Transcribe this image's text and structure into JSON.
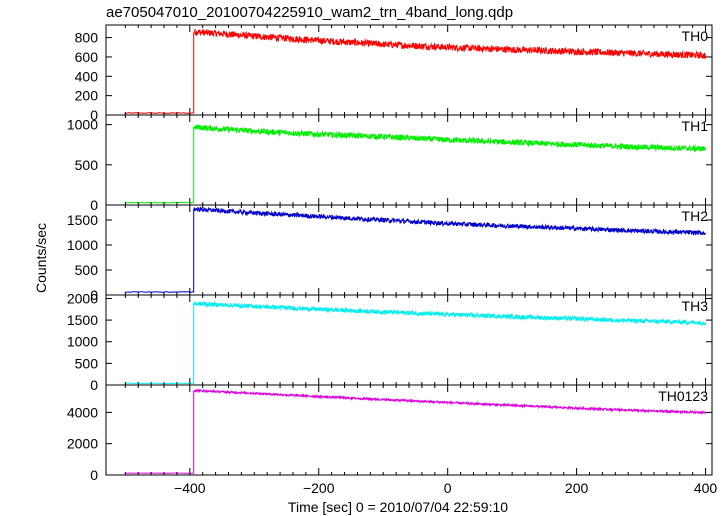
{
  "title": "ae705047010_20100704225910_wam2_trn_4band_long.qdp",
  "ylabel": "Counts/sec",
  "xlabel": "Time [sec] 0 = 2010/07/04 22:59:10",
  "chart_data": {
    "type": "line",
    "title": "ae705047010_20100704225910_wam2_trn_4band_long.qdp",
    "xlabel": "Time [sec] 0 = 2010/07/04 22:59:10",
    "ylabel": "Counts/sec",
    "xlim": [
      -530,
      410
    ],
    "x_ticks": [
      -400,
      -200,
      0,
      200,
      400
    ],
    "x_tick_labels": [
      "−400",
      "−200",
      "0",
      "200",
      "400"
    ],
    "trigger_time": -394,
    "x_end": 400,
    "grid": false,
    "panels": [
      {
        "name": "TH0",
        "color": "#ff0000",
        "ylim": [
          0,
          930
        ],
        "y_ticks": [
          0,
          200,
          400,
          600,
          800
        ],
        "background": 20,
        "points": [
          [
            -394,
            860
          ],
          [
            -300,
            815
          ],
          [
            -200,
            770
          ],
          [
            -100,
            730
          ],
          [
            0,
            700
          ],
          [
            100,
            675
          ],
          [
            200,
            655
          ],
          [
            300,
            635
          ],
          [
            400,
            615
          ]
        ],
        "noise": 70
      },
      {
        "name": "TH1",
        "color": "#00ee00",
        "ylim": [
          0,
          1120
        ],
        "y_ticks": [
          0,
          500,
          1000
        ],
        "background": 30,
        "points": [
          [
            -394,
            970
          ],
          [
            -300,
            920
          ],
          [
            -200,
            880
          ],
          [
            -100,
            850
          ],
          [
            0,
            810
          ],
          [
            100,
            780
          ],
          [
            200,
            750
          ],
          [
            300,
            720
          ],
          [
            400,
            700
          ]
        ],
        "noise": 70
      },
      {
        "name": "TH2",
        "color": "#0000cc",
        "ylim": [
          0,
          1800
        ],
        "y_ticks": [
          0,
          500,
          1000,
          1500
        ],
        "background": 60,
        "points": [
          [
            -394,
            1720
          ],
          [
            -300,
            1640
          ],
          [
            -200,
            1570
          ],
          [
            -100,
            1500
          ],
          [
            0,
            1430
          ],
          [
            100,
            1380
          ],
          [
            200,
            1330
          ],
          [
            300,
            1280
          ],
          [
            400,
            1240
          ]
        ],
        "noise": 90
      },
      {
        "name": "TH3",
        "color": "#00eeee",
        "ylim": [
          0,
          2080
        ],
        "y_ticks": [
          0,
          500,
          1000,
          1500,
          2000
        ],
        "background": 40,
        "points": [
          [
            -394,
            1880
          ],
          [
            -300,
            1820
          ],
          [
            -200,
            1750
          ],
          [
            -100,
            1690
          ],
          [
            0,
            1630
          ],
          [
            100,
            1580
          ],
          [
            200,
            1530
          ],
          [
            300,
            1480
          ],
          [
            400,
            1440
          ]
        ],
        "noise": 100
      },
      {
        "name": "TH0123",
        "color": "#dd00dd",
        "ylim": [
          0,
          5750
        ],
        "y_ticks": [
          0,
          2000,
          4000
        ],
        "background": 120,
        "points": [
          [
            -394,
            5400
          ],
          [
            -300,
            5220
          ],
          [
            -200,
            5010
          ],
          [
            -100,
            4820
          ],
          [
            0,
            4630
          ],
          [
            100,
            4450
          ],
          [
            200,
            4270
          ],
          [
            300,
            4110
          ],
          [
            400,
            3990
          ]
        ],
        "noise": 130
      }
    ]
  }
}
